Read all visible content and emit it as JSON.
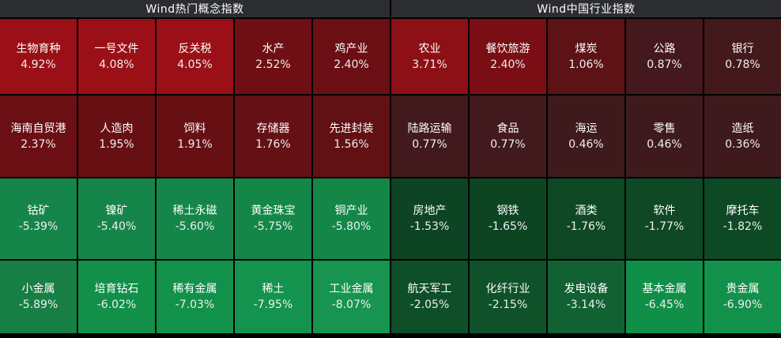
{
  "colors": {
    "background": "#000000",
    "header_bg": "#2b2d31",
    "header_text": "#ffffff",
    "cell_text": "#ffffff"
  },
  "panels": [
    {
      "title": "Wind热门概念指数",
      "cells": [
        {
          "name": "生物育种",
          "pct": "4.92%",
          "color": "#9b0f16"
        },
        {
          "name": "一号文件",
          "pct": "4.08%",
          "color": "#9b1016"
        },
        {
          "name": "反关税",
          "pct": "4.05%",
          "color": "#9a1016"
        },
        {
          "name": "水产",
          "pct": "2.52%",
          "color": "#6f0f14"
        },
        {
          "name": "鸡产业",
          "pct": "2.40%",
          "color": "#6c0f14"
        },
        {
          "name": "海南自贸港",
          "pct": "2.37%",
          "color": "#6b0f14"
        },
        {
          "name": "人造肉",
          "pct": "1.95%",
          "color": "#671014"
        },
        {
          "name": "饲料",
          "pct": "1.91%",
          "color": "#671014"
        },
        {
          "name": "存储器",
          "pct": "1.76%",
          "color": "#641014"
        },
        {
          "name": "先进封装",
          "pct": "1.56%",
          "color": "#611014"
        },
        {
          "name": "钴矿",
          "pct": "-5.39%",
          "color": "#16854a"
        },
        {
          "name": "镍矿",
          "pct": "-5.40%",
          "color": "#16854a"
        },
        {
          "name": "稀土永磁",
          "pct": "-5.60%",
          "color": "#158649"
        },
        {
          "name": "黄金珠宝",
          "pct": "-5.75%",
          "color": "#148748"
        },
        {
          "name": "铜产业",
          "pct": "-5.80%",
          "color": "#148748"
        },
        {
          "name": "小金属",
          "pct": "-5.89%",
          "color": "#177e44"
        },
        {
          "name": "培育钻石",
          "pct": "-6.02%",
          "color": "#12904a"
        },
        {
          "name": "稀有金属",
          "pct": "-7.03%",
          "color": "#12914b"
        },
        {
          "name": "稀土",
          "pct": "-7.95%",
          "color": "#13934d"
        },
        {
          "name": "工业金属",
          "pct": "-8.07%",
          "color": "#17944f"
        }
      ]
    },
    {
      "title": "Wind中国行业指数",
      "cells": [
        {
          "name": "农业",
          "pct": "3.71%",
          "color": "#8d1016"
        },
        {
          "name": "餐饮旅游",
          "pct": "2.40%",
          "color": "#7a0e14"
        },
        {
          "name": "煤炭",
          "pct": "1.06%",
          "color": "#5d1216"
        },
        {
          "name": "公路",
          "pct": "0.87%",
          "color": "#44181c"
        },
        {
          "name": "银行",
          "pct": "0.78%",
          "color": "#43191c"
        },
        {
          "name": "陆路运输",
          "pct": "0.77%",
          "color": "#421a1d"
        },
        {
          "name": "食品",
          "pct": "0.77%",
          "color": "#421a1d"
        },
        {
          "name": "海运",
          "pct": "0.46%",
          "color": "#3f1a1d"
        },
        {
          "name": "零售",
          "pct": "0.46%",
          "color": "#3f1a1d"
        },
        {
          "name": "造纸",
          "pct": "0.36%",
          "color": "#3e1a1d"
        },
        {
          "name": "房地产",
          "pct": "-1.53%",
          "color": "#0d4423"
        },
        {
          "name": "钢铁",
          "pct": "-1.65%",
          "color": "#0d4523"
        },
        {
          "name": "酒类",
          "pct": "-1.76%",
          "color": "#0e4825"
        },
        {
          "name": "软件",
          "pct": "-1.77%",
          "color": "#0e4825"
        },
        {
          "name": "摩托车",
          "pct": "-1.82%",
          "color": "#0e4926"
        },
        {
          "name": "航天军工",
          "pct": "-2.05%",
          "color": "#0e4f29"
        },
        {
          "name": "化纤行业",
          "pct": "-2.15%",
          "color": "#0f522a"
        },
        {
          "name": "发电设备",
          "pct": "-3.14%",
          "color": "#116133"
        },
        {
          "name": "基本金属",
          "pct": "-6.45%",
          "color": "#0f8f48"
        },
        {
          "name": "贵金属",
          "pct": "-6.90%",
          "color": "#12914a"
        }
      ]
    }
  ],
  "chart_data": [
    {
      "type": "heatmap",
      "title": "Wind热门概念指数",
      "categories": [
        "生物育种",
        "一号文件",
        "反关税",
        "水产",
        "鸡产业",
        "海南自贸港",
        "人造肉",
        "饲料",
        "存储器",
        "先进封装",
        "钴矿",
        "镍矿",
        "稀土永磁",
        "黄金珠宝",
        "铜产业",
        "小金属",
        "培育钻石",
        "稀有金属",
        "稀土",
        "工业金属"
      ],
      "values": [
        4.92,
        4.08,
        4.05,
        2.52,
        2.4,
        2.37,
        1.95,
        1.91,
        1.76,
        1.56,
        -5.39,
        -5.4,
        -5.6,
        -5.75,
        -5.8,
        -5.89,
        -6.02,
        -7.03,
        -7.95,
        -8.07
      ],
      "unit": "%",
      "layout": "5 columns x 4 rows, positive values red (brighter = larger gain), negative values green (brighter = larger loss)"
    },
    {
      "type": "heatmap",
      "title": "Wind中国行业指数",
      "categories": [
        "农业",
        "餐饮旅游",
        "煤炭",
        "公路",
        "银行",
        "陆路运输",
        "食品",
        "海运",
        "零售",
        "造纸",
        "房地产",
        "钢铁",
        "酒类",
        "软件",
        "摩托车",
        "航天军工",
        "化纤行业",
        "发电设备",
        "基本金属",
        "贵金属"
      ],
      "values": [
        3.71,
        2.4,
        1.06,
        0.87,
        0.78,
        0.77,
        0.77,
        0.46,
        0.46,
        0.36,
        -1.53,
        -1.65,
        -1.76,
        -1.77,
        -1.82,
        -2.05,
        -2.15,
        -3.14,
        -6.45,
        -6.9
      ],
      "unit": "%",
      "layout": "5 columns x 4 rows, positive values red (brighter = larger gain), negative values green (brighter = larger loss)"
    }
  ]
}
